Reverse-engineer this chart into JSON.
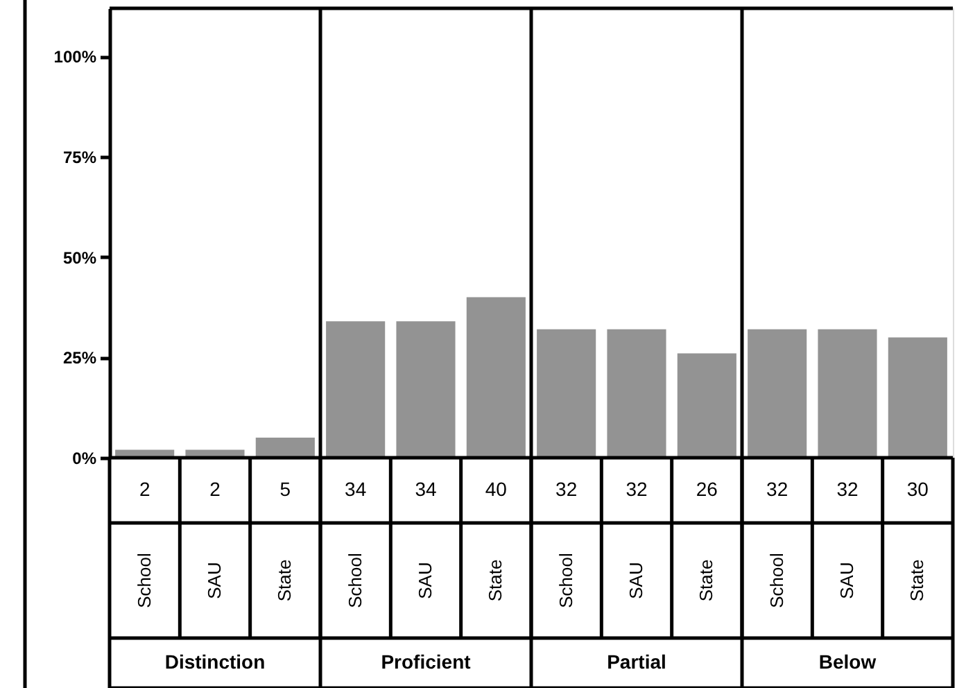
{
  "chart_data": {
    "type": "bar",
    "categories": [
      "School",
      "SAU",
      "State",
      "School",
      "SAU",
      "State",
      "School",
      "SAU",
      "State",
      "School",
      "SAU",
      "State"
    ],
    "values": [
      2,
      2,
      5,
      34,
      34,
      40,
      32,
      32,
      26,
      32,
      32,
      30
    ],
    "color": "#939393",
    "data_labels": true,
    "annotations": [
      "Distinction",
      "Proficient",
      "Partial",
      "Below"
    ],
    "ylim": [
      0,
      112
    ],
    "yticks": [
      {
        "value": 0,
        "label": "0%"
      },
      {
        "value": 25,
        "label": "25%"
      },
      {
        "value": 50,
        "label": "50%"
      },
      {
        "value": 75,
        "label": "75%"
      },
      {
        "value": 100,
        "label": "100%"
      }
    ],
    "grid": false
  }
}
